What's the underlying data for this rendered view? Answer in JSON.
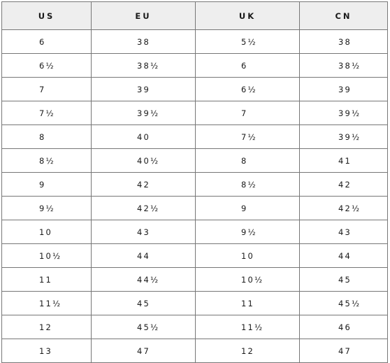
{
  "table": {
    "headers": [
      "US",
      "EU",
      "UK",
      "CN"
    ],
    "rows": [
      [
        "6",
        "38",
        "5½",
        "38"
      ],
      [
        "6½",
        "38½",
        "6",
        "38½"
      ],
      [
        "7",
        "39",
        "6½",
        "39"
      ],
      [
        "7½",
        "39½",
        "7",
        "39½"
      ],
      [
        "8",
        "40",
        "7½",
        "39½"
      ],
      [
        "8½",
        "40½",
        "8",
        "41"
      ],
      [
        "9",
        "42",
        "8½",
        "42"
      ],
      [
        "9½",
        "42½",
        "9",
        "42½"
      ],
      [
        "10",
        "43",
        "9½",
        "43"
      ],
      [
        "10½",
        "44",
        "10",
        "44"
      ],
      [
        "11",
        "44½",
        "10½",
        "45"
      ],
      [
        "11½",
        "45",
        "11",
        "45½"
      ],
      [
        "12",
        "45½",
        "11½",
        "46"
      ],
      [
        "13",
        "47",
        "12",
        "47"
      ]
    ]
  }
}
